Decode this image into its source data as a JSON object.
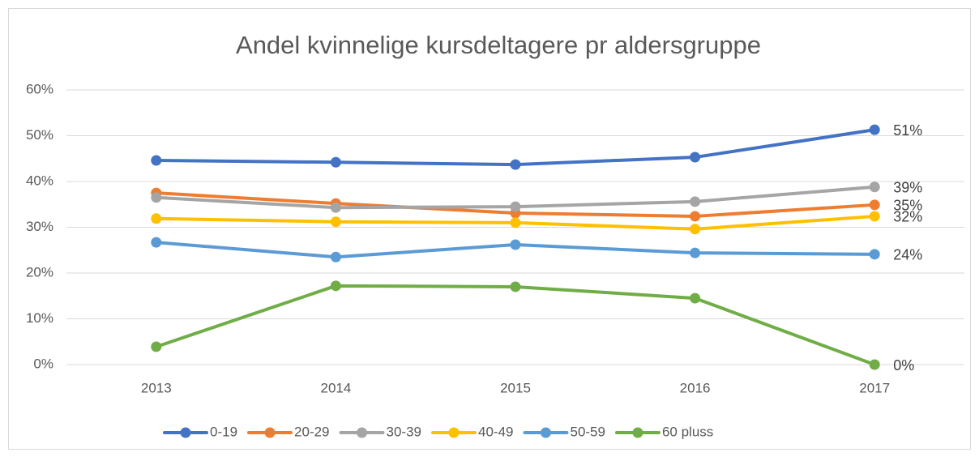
{
  "chart_data": {
    "type": "line",
    "title": "Andel kvinnelige kursdeltagere pr aldersgruppe",
    "categories": [
      "2013",
      "2014",
      "2015",
      "2016",
      "2017"
    ],
    "series": [
      {
        "name": "0-19",
        "color": "#4472c4",
        "values": [
          44.6,
          44.2,
          43.7,
          45.3,
          51.3
        ],
        "value_labels": [
          null,
          null,
          null,
          null,
          "51%"
        ]
      },
      {
        "name": "20-29",
        "color": "#ed7d31",
        "values": [
          37.5,
          35.2,
          33.1,
          32.4,
          34.9
        ],
        "value_labels": [
          null,
          null,
          null,
          null,
          "35%"
        ]
      },
      {
        "name": "30-39",
        "color": "#a5a5a5",
        "values": [
          36.5,
          34.3,
          34.5,
          35.6,
          38.8
        ],
        "value_labels": [
          null,
          null,
          null,
          null,
          "39%"
        ]
      },
      {
        "name": "40-49",
        "color": "#ffc000",
        "values": [
          31.9,
          31.2,
          31.0,
          29.6,
          32.4
        ],
        "value_labels": [
          null,
          null,
          null,
          null,
          "32%"
        ]
      },
      {
        "name": "50-59",
        "color": "#5b9bd5",
        "values": [
          26.7,
          23.5,
          26.2,
          24.4,
          24.1
        ],
        "value_labels": [
          null,
          null,
          null,
          null,
          "24%"
        ]
      },
      {
        "name": "60 pluss",
        "color": "#70ad47",
        "values": [
          3.9,
          17.2,
          17.0,
          14.5,
          0
        ],
        "value_labels": [
          null,
          null,
          null,
          null,
          "0%"
        ]
      }
    ],
    "ylim": [
      0,
      60
    ],
    "yticks": [
      {
        "value": 0,
        "label": "0%"
      },
      {
        "value": 10,
        "label": "10%"
      },
      {
        "value": 20,
        "label": "20%"
      },
      {
        "value": 30,
        "label": "30%"
      },
      {
        "value": 40,
        "label": "40%"
      },
      {
        "value": 50,
        "label": "50%"
      },
      {
        "value": 60,
        "label": "60%"
      }
    ],
    "grid": true,
    "legend": "bottom"
  }
}
